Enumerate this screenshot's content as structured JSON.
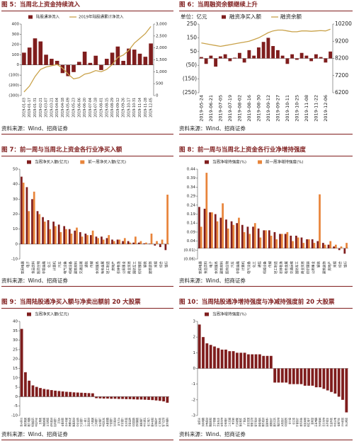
{
  "chart_data": [
    {
      "type": "bar",
      "title": "图 5：当周北上资金持续流入",
      "source": "资料来源：Wind、招商证券",
      "categories": [
        "2019-01-03",
        "2019-01-17",
        "2019-01-31",
        "2019-02-21",
        "2019-03-07",
        "2019-03-21",
        "2019-04-04",
        "2019-04-18",
        "2019-05-09",
        "2019-05-23",
        "2019-06-06",
        "2019-06-20",
        "2019-07-04",
        "2019-07-18",
        "2019-08-01",
        "2019-08-15",
        "2019-08-29",
        "2019-09-12",
        "2019-09-26",
        "2019-10-17",
        "2019-10-31",
        "2019-11-14",
        "2019-11-28",
        "2019-12-05"
      ],
      "series": [
        {
          "name": "陆股通净流入",
          "type": "bar",
          "color": "#7f1d1d",
          "values": [
            120,
            170,
            260,
            230,
            100,
            60,
            40,
            -80,
            -110,
            -70,
            30,
            130,
            20,
            90,
            -50,
            60,
            120,
            180,
            40,
            160,
            150,
            110,
            80,
            210
          ]
        },
        {
          "name": "2019年陆股通累计净流入",
          "type": "line",
          "axis": "y2",
          "color": "#c9a24a",
          "values": [
            150,
            400,
            800,
            1100,
            1200,
            1250,
            1300,
            1150,
            900,
            700,
            750,
            900,
            950,
            1050,
            1000,
            1100,
            1300,
            1600,
            1700,
            1900,
            2200,
            2400,
            2600,
            2900
          ]
        }
      ],
      "ylim": [
        -300,
        400
      ],
      "yticks": [
        400,
        300,
        200,
        100,
        0,
        {
          "value": -100,
          "label": "(100)"
        },
        {
          "value": -200,
          "label": "(200)"
        },
        {
          "value": -300,
          "label": "(300)"
        }
      ],
      "y2lim": [
        0,
        3000
      ],
      "y2ticks": [
        {
          "value": 3000,
          "label": "3,000"
        },
        {
          "value": 2500,
          "label": "2,500"
        },
        {
          "value": 2000,
          "label": "2,000"
        },
        {
          "value": 1500,
          "label": "1,500"
        },
        {
          "value": 1000,
          "label": "1,000"
        },
        500,
        0
      ]
    },
    {
      "type": "bar",
      "title": "图 6：当周融资余额继续上升",
      "source": "资料来源：Wind、招商证券",
      "unit": "单位：亿元",
      "categories": [
        "2019-05-24",
        null,
        "2019-06-21",
        null,
        "2019-07-05",
        null,
        "2019-07-19",
        null,
        "2019-08-02",
        null,
        "2019-08-16",
        null,
        "2019-08-30",
        null,
        "2019-09-12",
        null,
        "2019-09-27",
        null,
        "2019-10-11",
        null,
        "2019-10-25",
        null,
        "2019-11-08",
        null,
        "2019-11-22",
        null,
        "2019-12-06",
        null
      ],
      "series": [
        {
          "name": "融资净买入额",
          "type": "bar",
          "color": "#7f1d1d",
          "values": [
            10,
            -40,
            20,
            -60,
            15,
            30,
            -20,
            5,
            40,
            -30,
            60,
            20,
            80,
            120,
            150,
            90,
            60,
            20,
            -40,
            30,
            -10,
            40,
            20,
            -20,
            30,
            10,
            -30,
            50
          ]
        },
        {
          "name": "融资余额",
          "type": "line",
          "axis": "y2",
          "color": "#c9a24a",
          "values": [
            9100,
            9050,
            9000,
            8950,
            8900,
            8950,
            9000,
            9050,
            9100,
            9150,
            9200,
            9300,
            9400,
            9550,
            9700,
            9800,
            9850,
            9850,
            9800,
            9750,
            9750,
            9800,
            9800,
            9780,
            9800,
            9820,
            9800,
            9900
          ]
        }
      ],
      "ylim": [
        -250,
        250
      ],
      "yticks": [
        250,
        150,
        50,
        {
          "value": -50,
          "label": "(50)"
        },
        {
          "value": -150,
          "label": "(150)"
        },
        {
          "value": -250,
          "label": "(250)"
        }
      ],
      "y2lim": [
        6200,
        10200
      ],
      "y2ticks": [
        10200,
        9200,
        8200,
        7200,
        6200
      ]
    },
    {
      "type": "bar",
      "title": "图 7：前一周与当周北上资金各行业净买入额",
      "source": "资料来源：Wind、招商证券",
      "categories": [
        "家用电器",
        "电子",
        "食品饮料",
        "医药生物",
        "非银金融",
        "化工",
        "计算机",
        "汽车",
        "电气设备",
        "机械设备",
        "建筑材料",
        "交通运输",
        "通信",
        "传媒",
        "休闲服务",
        "有色金属",
        "轻工制造",
        "房地产",
        "农林牧渔",
        "公用事业",
        "商业贸易",
        "国防军工",
        "纺织服装",
        "钢铁",
        "建筑装饰",
        "采掘",
        "综合",
        "银行"
      ],
      "series": [
        {
          "name": "当周净买入额(亿元)",
          "type": "bar",
          "color": "#7f1d1d",
          "values": [
            45,
            38,
            30,
            22,
            18,
            16,
            15,
            13,
            12,
            10,
            9,
            8,
            7,
            6,
            5,
            5,
            4,
            3,
            3,
            2,
            2,
            1,
            1,
            0.5,
            0.3,
            -1,
            -2,
            -4
          ]
        },
        {
          "name": "前一周净买入额(亿元)",
          "type": "bar",
          "color": "#e8843a",
          "values": [
            41,
            22,
            35,
            20,
            15,
            10,
            12,
            8,
            10,
            7,
            11,
            5,
            6,
            9,
            4,
            3,
            6,
            2,
            3,
            4,
            1,
            5,
            2,
            1,
            7,
            2,
            3,
            33
          ]
        }
      ],
      "ylim": [
        -10,
        50
      ],
      "yticks": [
        50,
        40,
        30,
        20,
        10,
        0,
        -10
      ]
    },
    {
      "type": "bar",
      "title": "图 8：前一周与当周北上资金各行业净增持强度",
      "source": "资料来源：Wind、招商证券",
      "categories": [
        "家用电器",
        "食品饮料",
        "电子",
        "休闲服务",
        "建筑材料",
        "医药生物",
        "汽车",
        "非银金融",
        "计算机",
        "电气设备",
        "化工",
        "通信",
        "机械设备",
        "传媒",
        "轻工制造",
        "农林牧渔",
        "有色金属",
        "交通运输",
        "国防军工",
        "商业贸易",
        "纺织服装",
        "公用事业",
        "钢铁",
        "建筑装饰",
        "房地产",
        "采掘",
        "综合",
        "银行"
      ],
      "series": [
        {
          "name": "当周净增持强度(%)",
          "type": "bar",
          "color": "#7f1d1d",
          "values": [
            0.23,
            0.22,
            0.2,
            0.19,
            0.17,
            0.16,
            0.15,
            0.14,
            0.13,
            0.12,
            0.12,
            0.11,
            0.1,
            0.1,
            0.09,
            0.08,
            0.08,
            0.07,
            0.07,
            0.06,
            0.05,
            0.05,
            0.04,
            0.03,
            0.02,
            0.01,
            -0.01,
            -0.03
          ]
        },
        {
          "name": "前一周净增持强度(%)",
          "type": "bar",
          "color": "#e8843a",
          "values": [
            0.12,
            0.42,
            0.2,
            0.15,
            0.25,
            0.11,
            0.13,
            0.17,
            0.09,
            0.08,
            0.14,
            0.06,
            0.1,
            0.07,
            0.05,
            0.08,
            0.09,
            0.04,
            0.06,
            0.03,
            0.05,
            0.03,
            0.3,
            0.02,
            0.04,
            0.02,
            0.01,
            0.03
          ]
        }
      ],
      "ylim": [
        -0.06,
        0.44
      ],
      "yticks": [
        0.44,
        0.39,
        0.34,
        0.29,
        0.24,
        0.19,
        0.14,
        0.09,
        0.04,
        {
          "value": -0.01,
          "label": "(0.01)"
        },
        {
          "value": -0.06,
          "label": "(0.06)"
        }
      ]
    },
    {
      "type": "bar",
      "title": "图 9：当周陆股通净买入额与净卖出额前 20 大股票",
      "source": "资料来源：Wind、招商证券",
      "categories": [
        "贵州茅台",
        "美的集团",
        "格力电器",
        "恒瑞医药",
        "中国平安",
        "五粮液",
        "海康威视",
        "立讯精密",
        "伊利股份",
        "招商银行",
        "万科A",
        "长春高新",
        "分众传媒",
        "海螺水泥",
        "隆基股份",
        "中信证券",
        "兴业银行",
        "三一重工",
        "温氏股份",
        "上汽集团",
        "工商银行",
        "农业银行",
        "中国石化",
        "大秦铁路",
        "宁波银行",
        "洋河股份",
        "京东方A",
        "平安银行",
        "东方财富",
        "华泰证券",
        "中国国旅",
        "药明康德",
        "浦发银行",
        "中兴通讯",
        "长江电力",
        "顺丰控股",
        "迈瑞医疗",
        "汇顶科技",
        "智飞生物",
        "爱尔眼科"
      ],
      "series": [
        {
          "name": "当周净买入额(亿元)",
          "type": "bar",
          "color": "#7f1d1d",
          "values": [
            36,
            13,
            8.5,
            6,
            5.2,
            4.6,
            4.1,
            3.8,
            3.5,
            3.2,
            3,
            2.8,
            2.6,
            2.5,
            2.3,
            2.2,
            2.1,
            2,
            1.9,
            1.8,
            -0.8,
            -0.9,
            -1,
            -1,
            -1.1,
            -1.1,
            -1.2,
            -1.2,
            -1.3,
            -1.3,
            -1.4,
            -1.5,
            -1.5,
            -1.6,
            -1.7,
            -1.8,
            -2,
            -2.2,
            -2.5,
            -3.2
          ]
        }
      ],
      "ylim": [
        -10,
        40
      ],
      "yticks": [
        40,
        35,
        30,
        25,
        20,
        15,
        10,
        5,
        0,
        -5,
        -10
      ]
    },
    {
      "type": "bar",
      "title": "图 10：当周陆股通净增持强度与净减持强度前 20 大股票",
      "source": "资料来源：Wind、招商证券",
      "categories": [
        "欧菲光",
        "深南电路",
        "沪电股份",
        "鹏鼎控股",
        "卫宁健康",
        "华友钴业",
        "安科生物",
        "中科曙光",
        "三七互娱",
        "老百姓",
        "亿纬锂能",
        "宝信软件",
        "广联达",
        "圣农发展",
        "健帆生物",
        "星宇股份",
        "南极电商",
        "歌尔股份",
        "国瓷材料",
        "通策医疗",
        "晨光文具",
        "我武生物",
        "大族激光",
        "中国国贸",
        "合力泰",
        "信立泰",
        "乐普医疗",
        "金风科技",
        "用友网络",
        "恒生电子",
        "新希望",
        "正泰电器",
        "光环新网",
        "华兰生物",
        "天齐锂业",
        "生益科技",
        "中航光电",
        "长城汽车",
        "泸州老窖",
        "东山精密"
      ],
      "series": [
        {
          "name": "当周净增持强度(%)",
          "type": "bar",
          "color": "#7f1d1d",
          "values": [
            2.8,
            2.0,
            1.6,
            1.5,
            1.4,
            1.3,
            1.2,
            1.2,
            1.1,
            1.1,
            1.0,
            1.0,
            1.0,
            0.9,
            0.9,
            0.9,
            0.9,
            0.8,
            0.8,
            0.8,
            -0.9,
            -0.9,
            -0.9,
            -0.9,
            -1.0,
            -1.0,
            -1.0,
            -1.0,
            -1.1,
            -1.1,
            -1.1,
            -1.2,
            -1.2,
            -1.3,
            -1.4,
            -1.5,
            -1.6,
            -1.8,
            -2.0,
            -2.8
          ]
        }
      ],
      "ylim": [
        -3,
        3
      ],
      "yticks": [
        3,
        2,
        1,
        0,
        -1,
        -2,
        -3
      ]
    }
  ]
}
